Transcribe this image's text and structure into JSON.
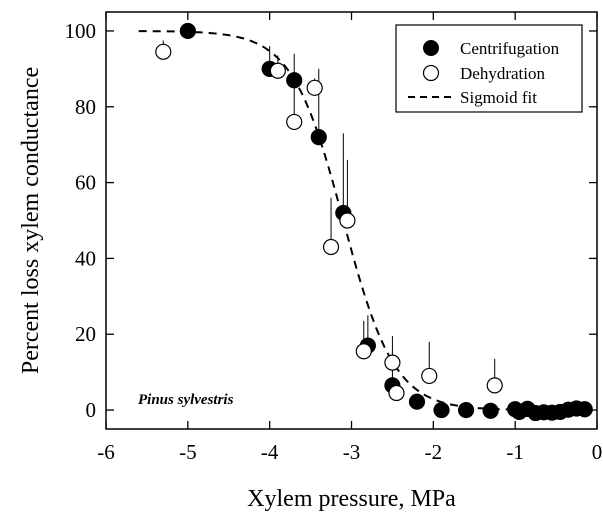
{
  "chart_data": {
    "type": "scatter",
    "xlabel": "Xylem pressure, MPa",
    "ylabel": "Percent loss xylem conductance",
    "xlim": [
      -6,
      0
    ],
    "ylim": [
      -5,
      105
    ],
    "x_ticks": [
      -6,
      -5,
      -4,
      -3,
      -2,
      -1,
      0
    ],
    "y_ticks": [
      0,
      20,
      40,
      60,
      80,
      100
    ],
    "annotation": "Pinus sylvestris",
    "legend_position": "top-right",
    "legend": [
      "Centrifugation",
      "Dehydration",
      "Sigmoid fit"
    ],
    "series": [
      {
        "name": "Centrifugation",
        "marker": "filled-circle",
        "color": "#000000",
        "points": [
          {
            "x": -5.0,
            "y": 100
          },
          {
            "x": -4.0,
            "y": 90,
            "err": 6
          },
          {
            "x": -3.7,
            "y": 87,
            "err": 7
          },
          {
            "x": -3.4,
            "y": 72,
            "err": 18
          },
          {
            "x": -3.1,
            "y": 52,
            "err": 21
          },
          {
            "x": -2.8,
            "y": 17,
            "err": 8
          },
          {
            "x": -2.5,
            "y": 6.5,
            "err": 4
          },
          {
            "x": -2.2,
            "y": 2.2
          },
          {
            "x": -1.9,
            "y": 0
          },
          {
            "x": -1.6,
            "y": 0
          },
          {
            "x": -1.3,
            "y": -0.2
          },
          {
            "x": -1.0,
            "y": 0.2
          },
          {
            "x": -0.95,
            "y": -0.5
          },
          {
            "x": -0.85,
            "y": 0.3
          },
          {
            "x": -0.75,
            "y": -0.8
          },
          {
            "x": -0.65,
            "y": -0.6
          },
          {
            "x": -0.55,
            "y": -0.7
          },
          {
            "x": -0.45,
            "y": -0.5
          },
          {
            "x": -0.35,
            "y": 0.1
          },
          {
            "x": -0.25,
            "y": 0.4
          },
          {
            "x": -0.15,
            "y": 0.2
          }
        ]
      },
      {
        "name": "Dehydration",
        "marker": "open-circle",
        "color": "#000000",
        "points": [
          {
            "x": -5.3,
            "y": 94.5,
            "err": 3
          },
          {
            "x": -3.9,
            "y": 89.5,
            "err": 4
          },
          {
            "x": -3.7,
            "y": 76,
            "err": 13
          },
          {
            "x": -3.45,
            "y": 85,
            "err": 2.5
          },
          {
            "x": -3.25,
            "y": 43,
            "err": 13
          },
          {
            "x": -3.05,
            "y": 50,
            "err": 16
          },
          {
            "x": -2.85,
            "y": 15.5,
            "err": 8
          },
          {
            "x": -2.5,
            "y": 12.5,
            "err": 7
          },
          {
            "x": -2.45,
            "y": 4.5
          },
          {
            "x": -2.05,
            "y": 9,
            "err": 9
          },
          {
            "x": -1.25,
            "y": 6.5,
            "err": 7
          }
        ]
      },
      {
        "name": "Sigmoid fit",
        "line": "dashed",
        "color": "#000000",
        "model": "y = 100 / (1 + exp(a * (x - x50)))",
        "params": {
          "a": 3.2,
          "x50": -3.1
        }
      }
    ]
  }
}
